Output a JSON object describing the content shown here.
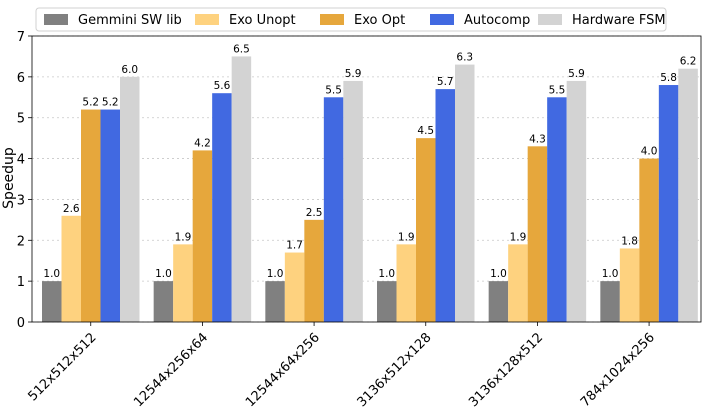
{
  "chart_data": {
    "type": "bar",
    "title": "",
    "xlabel": "",
    "ylabel": "Speedup",
    "ylim": [
      0,
      7
    ],
    "yticks": [
      0,
      1,
      2,
      3,
      4,
      5,
      6,
      7
    ],
    "grid": "y-dotted",
    "legend_position": "top",
    "categories": [
      "512x512x512",
      "12544x256x64",
      "12544x64x256",
      "3136x512x128",
      "3136x128x512",
      "784x1024x256"
    ],
    "series": [
      {
        "name": "Gemmini SW lib",
        "color": "#808080",
        "values": [
          1.0,
          1.0,
          1.0,
          1.0,
          1.0,
          1.0
        ],
        "labels": [
          "1.0",
          "1.0",
          "1.0",
          "1.0",
          "1.0",
          "1.0"
        ]
      },
      {
        "name": "Exo Unopt",
        "color": "#fed27f",
        "values": [
          2.6,
          1.9,
          1.7,
          1.9,
          1.9,
          1.8
        ],
        "labels": [
          "2.6",
          "1.9",
          "1.7",
          "1.9",
          "1.9",
          "1.8"
        ]
      },
      {
        "name": "Exo Opt",
        "color": "#e6a73c",
        "values": [
          5.2,
          4.2,
          2.5,
          4.5,
          4.3,
          4.0
        ],
        "labels": [
          "5.2",
          "4.2",
          "2.5",
          "4.5",
          "4.3",
          "4.0"
        ]
      },
      {
        "name": "Autocomp",
        "color": "#4169e1",
        "values": [
          5.2,
          5.6,
          5.5,
          5.7,
          5.5,
          5.8
        ],
        "labels": [
          "5.2",
          "5.6",
          "5.5",
          "5.7",
          "5.5",
          "5.8"
        ]
      },
      {
        "name": "Hardware FSM",
        "color": "#d3d3d3",
        "values": [
          6.0,
          6.5,
          5.9,
          6.3,
          5.9,
          6.2
        ],
        "labels": [
          "6.0",
          "6.5",
          "5.9",
          "6.3",
          "5.9",
          "6.2"
        ]
      }
    ]
  }
}
